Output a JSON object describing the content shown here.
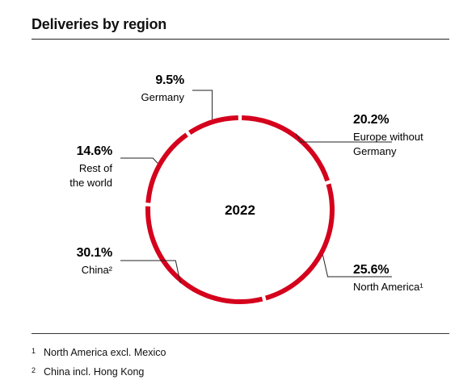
{
  "title": "Deliveries by region",
  "accent_color": "#d5001c",
  "chart_data": {
    "type": "pie",
    "title": "Deliveries by region",
    "center_label": "2022",
    "slices": [
      {
        "name": "Europe without Germany",
        "value": 20.2,
        "value_label": "20.2%",
        "label_lines": [
          "Europe without",
          "Germany"
        ]
      },
      {
        "name": "North America¹",
        "value": 25.6,
        "value_label": "25.6%",
        "label_lines": [
          "North America¹"
        ]
      },
      {
        "name": "China²",
        "value": 30.1,
        "value_label": "30.1%",
        "label_lines": [
          "China²"
        ]
      },
      {
        "name": "Rest of the world",
        "value": 14.6,
        "value_label": "14.6%",
        "label_lines": [
          "Rest of",
          "the world"
        ]
      },
      {
        "name": "Germany",
        "value": 9.5,
        "value_label": "9.5%",
        "label_lines": [
          "Germany"
        ]
      }
    ]
  },
  "footnotes": [
    {
      "mark": "1",
      "text": "North America excl. Mexico"
    },
    {
      "mark": "2",
      "text": "China incl. Hong Kong"
    }
  ]
}
